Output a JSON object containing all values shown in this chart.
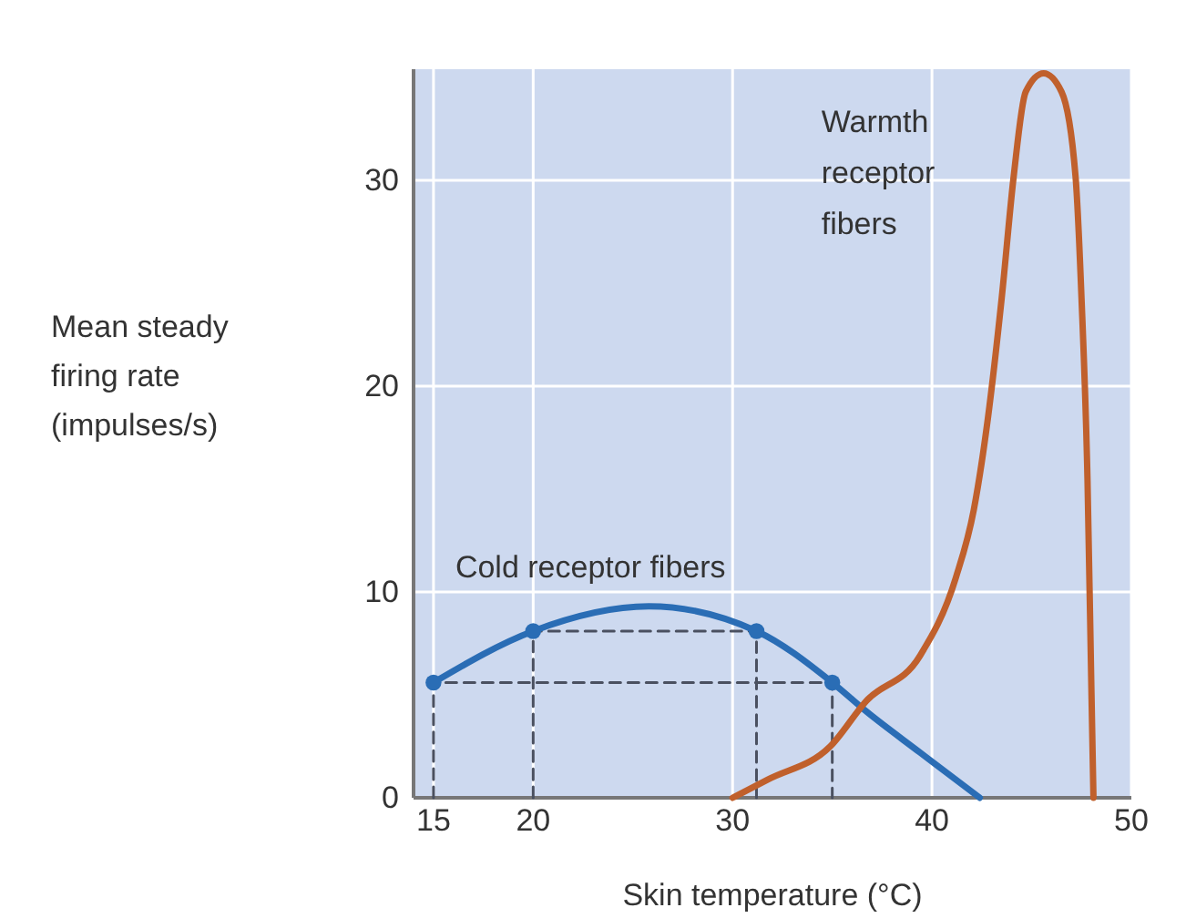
{
  "chart_data": {
    "type": "line",
    "xlabel": "Skin temperature (°C)",
    "ylabel": "Mean steady firing rate (impulses/s)",
    "xlim": [
      14,
      50
    ],
    "xticks": [
      15,
      20,
      30,
      40,
      50
    ],
    "ylim": [
      0,
      35.4
    ],
    "yticks": [
      0,
      10,
      20,
      30
    ],
    "grid": true,
    "line_style": "solid",
    "marker": "none",
    "series": [
      {
        "name": "Cold receptor fibers",
        "color": "#2a6db5",
        "x": [
          15,
          20,
          25.8,
          31.2,
          35,
          36.7,
          39.4,
          42.4
        ],
        "values": [
          5.6,
          8.1,
          9.3,
          8.1,
          5.6,
          4.2,
          2.2,
          0
        ]
      },
      {
        "name": "Warmth receptor fibers",
        "color": "#c0602c",
        "x": [
          30,
          31.8,
          34.9,
          36.7,
          39.4,
          41.2,
          42.1,
          42.8,
          43.5,
          44.1,
          44.7,
          45.6,
          46.5,
          47.2,
          47.5,
          47.8,
          48,
          48.1
        ],
        "values": [
          0,
          0.9,
          2.5,
          4.7,
          6.9,
          10.7,
          14,
          18.4,
          24.3,
          30.2,
          34.3,
          35.2,
          34.3,
          30.2,
          24.3,
          15.5,
          5.1,
          0
        ]
      },
      {
        "type": "scatter",
        "marker": "circle",
        "color": "#2a6db5",
        "x": [
          15,
          20,
          31.2,
          35
        ],
        "values": [
          5.6,
          8.1,
          8.1,
          5.6
        ]
      },
      {
        "line_style": "dashed",
        "color": "#4a5060",
        "x": [
          15,
          15,
          35,
          35
        ],
        "values": [
          0,
          5.6,
          5.6,
          0
        ]
      },
      {
        "line_style": "dashed",
        "color": "#4a5060",
        "x": [
          20,
          20,
          31.2,
          31.2
        ],
        "values": [
          0,
          8.1,
          8.1,
          0
        ]
      }
    ]
  }
}
